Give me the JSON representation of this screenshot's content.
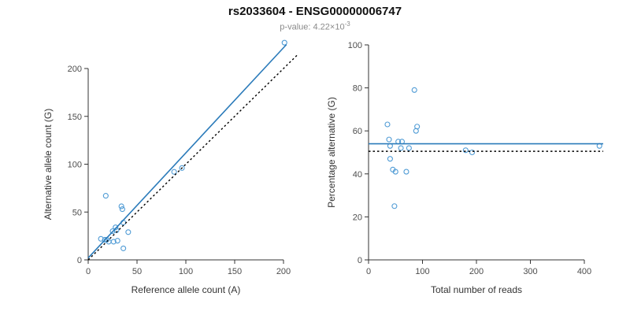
{
  "title": "rs2033604 - ENSG00000006747",
  "subtitle": {
    "prefix": "p-value: 4.22×10",
    "exponent": "-3"
  },
  "colors": {
    "point": "#4f9bd5",
    "line": "#2b7bba",
    "dashed": "#000000",
    "axis": "#333333",
    "tick_label": "#4d4d4d",
    "axis_label": "#333333"
  },
  "chart_data": [
    {
      "type": "scatter",
      "title": "",
      "xlabel": "Reference allele count (A)",
      "ylabel": "Alternative allele count (G)",
      "xlim": [
        0,
        200
      ],
      "ylim": [
        0,
        200
      ],
      "xticks": [
        0,
        50,
        100,
        150,
        200
      ],
      "yticks": [
        0,
        50,
        100,
        150,
        200
      ],
      "grid": false,
      "legend": "none",
      "points": [
        [
          13,
          22
        ],
        [
          17,
          21
        ],
        [
          18,
          67
        ],
        [
          19,
          21
        ],
        [
          21,
          19
        ],
        [
          25,
          30
        ],
        [
          26,
          19
        ],
        [
          28,
          34
        ],
        [
          29,
          31
        ],
        [
          30,
          20
        ],
        [
          34,
          56
        ],
        [
          35,
          53
        ],
        [
          36,
          12
        ],
        [
          36,
          39
        ],
        [
          41,
          29
        ],
        [
          88,
          92
        ],
        [
          96,
          96
        ],
        [
          201,
          227
        ]
      ],
      "lines": [
        {
          "name": "fit-line",
          "dash": "solid",
          "color": "line",
          "width": 1.6,
          "points": [
            [
              0,
              2
            ],
            [
              203,
              225
            ]
          ]
        },
        {
          "name": "identity-line",
          "dash": "dotted",
          "color": "dashed",
          "width": 1.4,
          "points": [
            [
              0,
              0
            ],
            [
              215,
              215
            ]
          ]
        }
      ]
    },
    {
      "type": "scatter",
      "title": "",
      "xlabel": "Total number of reads",
      "ylabel": "Percentage alternative (G)",
      "xlim": [
        0,
        400
      ],
      "ylim": [
        0,
        100
      ],
      "xticks": [
        0,
        100,
        200,
        300,
        400
      ],
      "yticks": [
        0,
        20,
        40,
        60,
        80,
        100
      ],
      "grid": false,
      "legend": "none",
      "points": [
        [
          35,
          63
        ],
        [
          38,
          56
        ],
        [
          40,
          53
        ],
        [
          40,
          47
        ],
        [
          45,
          42
        ],
        [
          48,
          25
        ],
        [
          50,
          41
        ],
        [
          55,
          55
        ],
        [
          60,
          52
        ],
        [
          62,
          55
        ],
        [
          70,
          41
        ],
        [
          75,
          52
        ],
        [
          85,
          79
        ],
        [
          88,
          60
        ],
        [
          90,
          62
        ],
        [
          180,
          51
        ],
        [
          192,
          50
        ],
        [
          428,
          53
        ]
      ],
      "lines": [
        {
          "name": "mean-line",
          "dash": "solid",
          "color": "line",
          "width": 1.6,
          "points": [
            [
              0,
              54
            ],
            [
              435,
              54
            ]
          ]
        },
        {
          "name": "expected-line",
          "dash": "dotted",
          "color": "dashed",
          "width": 1.4,
          "points": [
            [
              0,
              50.5
            ],
            [
              435,
              50.5
            ]
          ]
        }
      ]
    }
  ]
}
